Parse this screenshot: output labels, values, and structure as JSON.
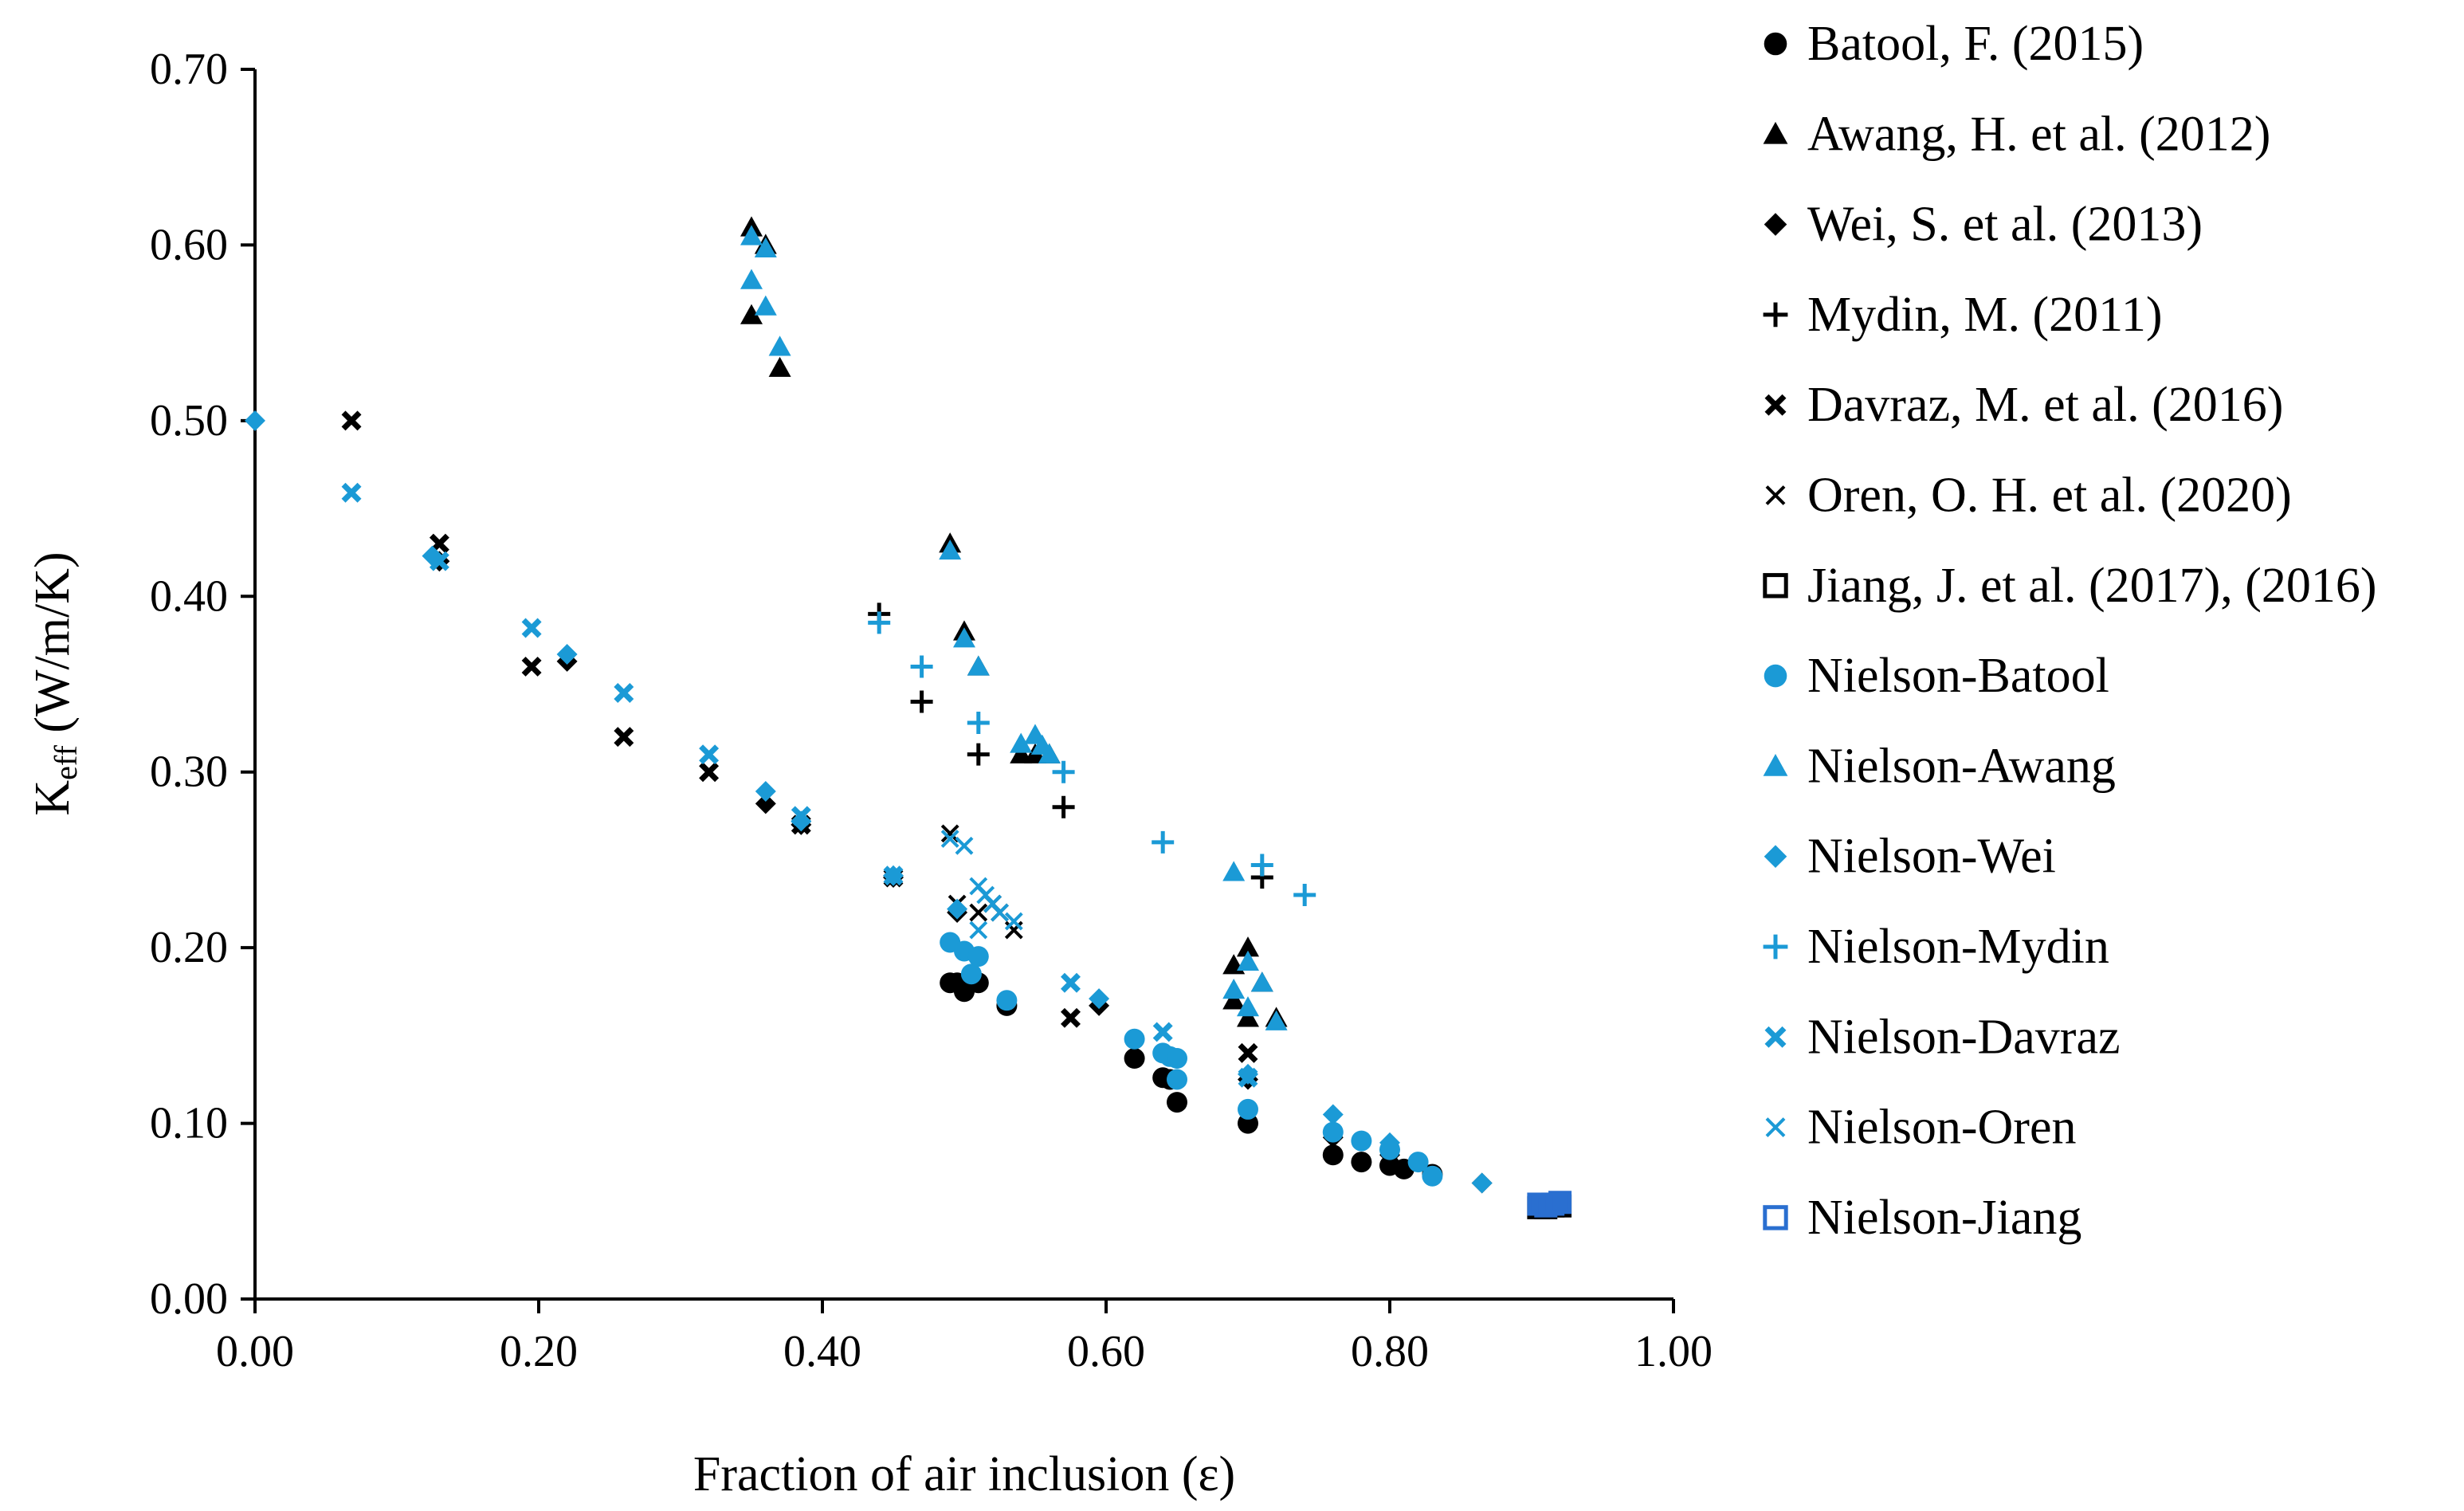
{
  "chart_data": {
    "type": "scatter",
    "title": "",
    "xlabel": "Fraction of air inclusion (ε)",
    "ylabel_main": "K",
    "ylabel_sub": "eff",
    "ylabel_rest": " (W/m/K)",
    "xlim": [
      0,
      1
    ],
    "ylim": [
      0,
      0.7
    ],
    "x_ticks": [
      "0.00",
      "0.20",
      "0.40",
      "0.60",
      "0.80",
      "1.00"
    ],
    "y_ticks": [
      "0.00",
      "0.10",
      "0.20",
      "0.30",
      "0.40",
      "0.50",
      "0.60",
      "0.70"
    ],
    "grid": false,
    "legend_position": "right",
    "series": [
      {
        "name": "Batool, F. (2015)",
        "marker": "circle",
        "color": "#000000",
        "points": [
          [
            0.49,
            0.18
          ],
          [
            0.495,
            0.18
          ],
          [
            0.5,
            0.175
          ],
          [
            0.505,
            0.18
          ],
          [
            0.51,
            0.18
          ],
          [
            0.53,
            0.167
          ],
          [
            0.62,
            0.137
          ],
          [
            0.64,
            0.126
          ],
          [
            0.645,
            0.125
          ],
          [
            0.65,
            0.112
          ],
          [
            0.7,
            0.1
          ],
          [
            0.76,
            0.082
          ],
          [
            0.78,
            0.078
          ],
          [
            0.8,
            0.076
          ],
          [
            0.81,
            0.074
          ],
          [
            0.83,
            0.071
          ]
        ]
      },
      {
        "name": "Awang, H. et al. (2012)",
        "marker": "triangle",
        "color": "#000000",
        "points": [
          [
            0.35,
            0.61
          ],
          [
            0.35,
            0.56
          ],
          [
            0.36,
            0.6
          ],
          [
            0.37,
            0.53
          ],
          [
            0.49,
            0.43
          ],
          [
            0.5,
            0.38
          ],
          [
            0.51,
            0.36
          ],
          [
            0.54,
            0.31
          ],
          [
            0.55,
            0.31
          ],
          [
            0.56,
            0.31
          ],
          [
            0.69,
            0.19
          ],
          [
            0.69,
            0.17
          ],
          [
            0.7,
            0.2
          ],
          [
            0.7,
            0.16
          ],
          [
            0.71,
            0.18
          ],
          [
            0.72,
            0.16
          ]
        ]
      },
      {
        "name": "Wei, S. et al. (2013)",
        "marker": "diamond",
        "color": "#000000",
        "points": [
          [
            0.13,
            0.42
          ],
          [
            0.22,
            0.363
          ],
          [
            0.36,
            0.282
          ],
          [
            0.385,
            0.27
          ],
          [
            0.45,
            0.24
          ],
          [
            0.495,
            0.22
          ],
          [
            0.595,
            0.167
          ],
          [
            0.7,
            0.125
          ],
          [
            0.76,
            0.092
          ],
          [
            0.8,
            0.082
          ],
          [
            0.865,
            0.066
          ]
        ]
      },
      {
        "name": "Mydin, M. (2011)",
        "marker": "plus",
        "color": "#000000",
        "points": [
          [
            0.44,
            0.39
          ],
          [
            0.47,
            0.34
          ],
          [
            0.51,
            0.31
          ],
          [
            0.57,
            0.28
          ],
          [
            0.71,
            0.24
          ]
        ]
      },
      {
        "name": "Davraz, M. et al. (2016)",
        "marker": "xthick",
        "color": "#000000",
        "points": [
          [
            0.068,
            0.5
          ],
          [
            0.13,
            0.43
          ],
          [
            0.195,
            0.36
          ],
          [
            0.26,
            0.32
          ],
          [
            0.32,
            0.3
          ],
          [
            0.385,
            0.27
          ],
          [
            0.45,
            0.24
          ],
          [
            0.575,
            0.16
          ],
          [
            0.7,
            0.14
          ]
        ]
      },
      {
        "name": "Oren, O. H. et al. (2020)",
        "marker": "xthin",
        "color": "#000000",
        "points": [
          [
            0.49,
            0.265
          ],
          [
            0.495,
            0.225
          ],
          [
            0.51,
            0.22
          ],
          [
            0.52,
            0.225
          ],
          [
            0.525,
            0.22
          ],
          [
            0.535,
            0.21
          ]
        ]
      },
      {
        "name": "Jiang, J. et al. (2017), (2016)",
        "marker": "square-open",
        "color": "#000000",
        "points": [
          [
            0.905,
            0.052
          ],
          [
            0.91,
            0.052
          ],
          [
            0.915,
            0.053
          ],
          [
            0.92,
            0.053
          ]
        ]
      },
      {
        "name": "Nielson-Batool",
        "marker": "circle",
        "color": "#1b9ad6",
        "points": [
          [
            0.49,
            0.203
          ],
          [
            0.5,
            0.198
          ],
          [
            0.505,
            0.185
          ],
          [
            0.51,
            0.195
          ],
          [
            0.53,
            0.17
          ],
          [
            0.62,
            0.148
          ],
          [
            0.64,
            0.14
          ],
          [
            0.645,
            0.138
          ],
          [
            0.65,
            0.137
          ],
          [
            0.65,
            0.125
          ],
          [
            0.7,
            0.108
          ],
          [
            0.76,
            0.095
          ],
          [
            0.78,
            0.09
          ],
          [
            0.8,
            0.085
          ],
          [
            0.82,
            0.078
          ],
          [
            0.83,
            0.07
          ]
        ]
      },
      {
        "name": "Nielson-Awang",
        "marker": "triangle",
        "color": "#1b9ad6",
        "points": [
          [
            0.35,
            0.605
          ],
          [
            0.35,
            0.58
          ],
          [
            0.36,
            0.598
          ],
          [
            0.36,
            0.565
          ],
          [
            0.37,
            0.542
          ],
          [
            0.49,
            0.426
          ],
          [
            0.5,
            0.376
          ],
          [
            0.51,
            0.36
          ],
          [
            0.54,
            0.316
          ],
          [
            0.55,
            0.321
          ],
          [
            0.555,
            0.315
          ],
          [
            0.56,
            0.31
          ],
          [
            0.69,
            0.243
          ],
          [
            0.69,
            0.176
          ],
          [
            0.7,
            0.192
          ],
          [
            0.7,
            0.166
          ],
          [
            0.71,
            0.18
          ],
          [
            0.72,
            0.158
          ]
        ]
      },
      {
        "name": "Nielson-Wei",
        "marker": "diamond",
        "color": "#1b9ad6",
        "points": [
          [
            0.0,
            0.5
          ],
          [
            0.125,
            0.423
          ],
          [
            0.22,
            0.367
          ],
          [
            0.36,
            0.289
          ],
          [
            0.385,
            0.272
          ],
          [
            0.45,
            0.241
          ],
          [
            0.495,
            0.222
          ],
          [
            0.595,
            0.171
          ],
          [
            0.7,
            0.128
          ],
          [
            0.76,
            0.105
          ],
          [
            0.8,
            0.089
          ],
          [
            0.865,
            0.066
          ]
        ]
      },
      {
        "name": "Nielson-Mydin",
        "marker": "plus",
        "color": "#1b9ad6",
        "points": [
          [
            0.44,
            0.385
          ],
          [
            0.47,
            0.36
          ],
          [
            0.51,
            0.328
          ],
          [
            0.57,
            0.3
          ],
          [
            0.64,
            0.26
          ],
          [
            0.71,
            0.247
          ],
          [
            0.74,
            0.23
          ]
        ]
      },
      {
        "name": "Nielson-Davraz",
        "marker": "xthick",
        "color": "#1b9ad6",
        "points": [
          [
            0.068,
            0.459
          ],
          [
            0.13,
            0.42
          ],
          [
            0.195,
            0.382
          ],
          [
            0.26,
            0.345
          ],
          [
            0.32,
            0.31
          ],
          [
            0.385,
            0.275
          ],
          [
            0.45,
            0.241
          ],
          [
            0.575,
            0.18
          ],
          [
            0.64,
            0.152
          ],
          [
            0.7,
            0.126
          ]
        ]
      },
      {
        "name": "Nielson-Oren",
        "marker": "xthin",
        "color": "#1b9ad6",
        "points": [
          [
            0.49,
            0.262
          ],
          [
            0.5,
            0.258
          ],
          [
            0.51,
            0.235
          ],
          [
            0.515,
            0.23
          ],
          [
            0.52,
            0.225
          ],
          [
            0.525,
            0.22
          ],
          [
            0.535,
            0.215
          ],
          [
            0.51,
            0.21
          ]
        ]
      },
      {
        "name": "Nielson-Jiang",
        "marker": "square-open",
        "color": "#2a6fd0",
        "points": [
          [
            0.905,
            0.054
          ],
          [
            0.91,
            0.053
          ],
          [
            0.915,
            0.054
          ],
          [
            0.92,
            0.055
          ]
        ]
      }
    ]
  }
}
